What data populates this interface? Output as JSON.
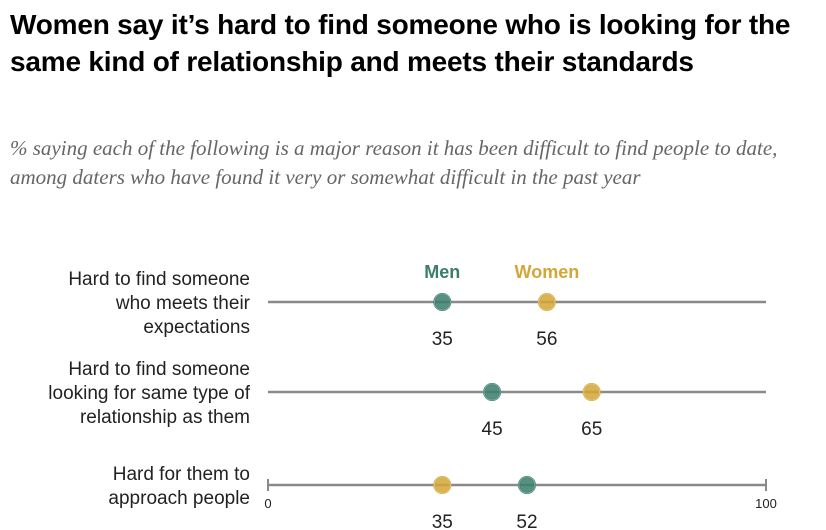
{
  "title": "Women say it’s hard to find someone who is looking for the same kind of relationship and meets their standards",
  "subtitle": "% saying each of the following is a major reason it has been difficult to find people to date, among daters who have found it very or somewhat difficult in the past year",
  "chart_data": {
    "type": "scatter",
    "title": "Women say it’s hard to find someone who is looking for the same kind of relationship and meets their standards",
    "subtitle": "% saying each of the following is a major reason it has been difficult to find people to date, among daters who have found it very or somewhat difficult in the past year",
    "categories": [
      [
        "Hard to find someone",
        "who meets their",
        "expectations"
      ],
      [
        "Hard to find someone",
        "looking for same type of",
        "relationship as them"
      ],
      [
        "Hard for them to",
        "approach people"
      ]
    ],
    "series": [
      {
        "name": "Men",
        "color": "#3a7d6c",
        "values": [
          35,
          45,
          52
        ]
      },
      {
        "name": "Women",
        "color": "#d3a637",
        "values": [
          56,
          65,
          35
        ]
      }
    ],
    "xlim": [
      0,
      100
    ],
    "xticks": [
      "0",
      "100"
    ],
    "legend_placement": "top, above first row",
    "grid": false
  }
}
